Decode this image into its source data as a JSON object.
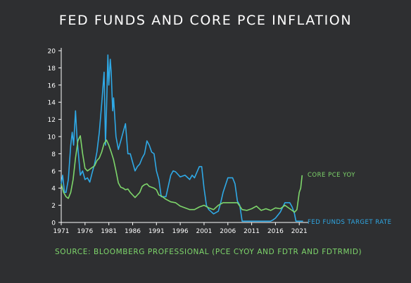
{
  "title": "FED FUNDS AND CORE PCE INFLATION",
  "source": "SOURCE: BLOOMBERG PROFESSIONAL (PCE CYOY AND FDTR AND FDTRMID)",
  "colors": {
    "background": "#2e2f31",
    "pce": "#7ed66b",
    "fedfunds": "#2fa9e6",
    "text": "#ffffff",
    "axis": "#ffffff"
  },
  "chart_data": {
    "type": "line",
    "title": "FED FUNDS AND CORE PCE INFLATION",
    "xlabel": "",
    "ylabel": "",
    "xlim": [
      1971,
      2022
    ],
    "ylim": [
      0,
      20
    ],
    "xticks": [
      "1971",
      "1976",
      "1981",
      "1986",
      "1991",
      "1996",
      "2001",
      "2006",
      "2011",
      "2016",
      "2021"
    ],
    "yticks": [
      "0",
      "2",
      "4",
      "6",
      "8",
      "10",
      "12",
      "14",
      "16",
      "18",
      "20"
    ],
    "grid": false,
    "series": [
      {
        "name": "CORE PCE YOY",
        "color": "#7ed66b",
        "x": [
          1971,
          1971.5,
          1972,
          1972.5,
          1973,
          1973.5,
          1974,
          1974.5,
          1975,
          1975.5,
          1976,
          1976.5,
          1977,
          1977.5,
          1978,
          1978.5,
          1979,
          1979.5,
          1980,
          1980.5,
          1981,
          1981.5,
          1982,
          1982.5,
          1983,
          1983.5,
          1984,
          1984.5,
          1985,
          1985.5,
          1986,
          1986.5,
          1987,
          1987.5,
          1988,
          1988.5,
          1989,
          1989.5,
          1990,
          1990.5,
          1991,
          1991.5,
          1992,
          1993,
          1994,
          1995,
          1996,
          1997,
          1998,
          1999,
          2000,
          2001,
          2002,
          2003,
          2004,
          2005,
          2006,
          2007,
          2008,
          2009,
          2010,
          2011,
          2012,
          2013,
          2014,
          2015,
          2016,
          2017,
          2018,
          2019,
          2020,
          2020.5,
          2021,
          2021.3,
          2021.6
        ],
        "y": [
          4.5,
          3.5,
          3.0,
          2.8,
          3.5,
          5.0,
          7.5,
          9.5,
          10.1,
          8.0,
          6.3,
          6.0,
          6.2,
          6.4,
          6.6,
          7.2,
          7.5,
          8.2,
          9.2,
          9.6,
          9.0,
          8.2,
          7.3,
          6.0,
          4.6,
          4.1,
          4.0,
          3.8,
          3.9,
          3.5,
          3.2,
          2.9,
          3.2,
          3.5,
          4.2,
          4.4,
          4.5,
          4.2,
          4.1,
          4.0,
          3.8,
          3.2,
          3.1,
          2.7,
          2.4,
          2.3,
          1.9,
          1.7,
          1.5,
          1.5,
          1.8,
          2.0,
          1.7,
          1.5,
          2.0,
          2.3,
          2.3,
          2.3,
          2.3,
          1.5,
          1.4,
          1.6,
          1.9,
          1.4,
          1.6,
          1.4,
          1.7,
          1.6,
          2.0,
          1.6,
          1.2,
          1.5,
          3.5,
          4.0,
          5.5
        ]
      },
      {
        "name": "FED FUNDS TARGET RATE",
        "color": "#2fa9e6",
        "x": [
          1971,
          1971.3,
          1971.7,
          1972,
          1972.5,
          1973,
          1973.3,
          1973.6,
          1974,
          1974.3,
          1974.6,
          1975,
          1975.5,
          1976,
          1976.5,
          1977,
          1977.5,
          1978,
          1978.5,
          1979,
          1979.5,
          1980,
          1980.3,
          1980.5,
          1980.8,
          1981,
          1981.3,
          1981.5,
          1981.8,
          1982,
          1982.5,
          1983,
          1983.5,
          1984,
          1984.5,
          1985,
          1985.5,
          1986,
          1986.5,
          1987,
          1987.5,
          1988,
          1988.5,
          1989,
          1989.5,
          1990,
          1990.5,
          1991,
          1991.5,
          1992,
          1993,
          1994,
          1994.5,
          1995,
          1996,
          1997,
          1998,
          1998.5,
          1999,
          2000,
          2000.5,
          2001,
          2001.5,
          2002,
          2003,
          2004,
          2004.5,
          2005,
          2006,
          2007,
          2007.5,
          2008,
          2008.5,
          2009,
          2010,
          2015,
          2015.5,
          2016,
          2017,
          2018,
          2019,
          2019.5,
          2020,
          2020.3,
          2021,
          2021.8
        ],
        "y": [
          4.5,
          5.5,
          3.5,
          3.5,
          5.0,
          9.0,
          10.5,
          9.0,
          13.0,
          10.0,
          8.0,
          5.5,
          6.0,
          5.0,
          5.2,
          4.7,
          5.8,
          6.8,
          8.2,
          10.5,
          13.8,
          17.5,
          9.0,
          13.0,
          19.5,
          16.0,
          19.0,
          17.5,
          13.0,
          14.5,
          10.0,
          8.5,
          9.5,
          10.5,
          11.5,
          8.0,
          8.0,
          7.0,
          6.0,
          6.5,
          6.8,
          7.5,
          8.0,
          9.5,
          9.0,
          8.2,
          8.0,
          6.0,
          5.0,
          3.0,
          3.0,
          5.5,
          6.0,
          5.9,
          5.3,
          5.5,
          5.0,
          5.5,
          5.2,
          6.5,
          6.5,
          4.0,
          2.0,
          1.5,
          1.0,
          1.3,
          2.3,
          3.5,
          5.2,
          5.2,
          4.5,
          2.5,
          2.0,
          0.15,
          0.15,
          0.15,
          0.3,
          0.5,
          1.2,
          2.3,
          2.3,
          1.8,
          1.0,
          0.15,
          0.15,
          0.15
        ]
      }
    ]
  }
}
